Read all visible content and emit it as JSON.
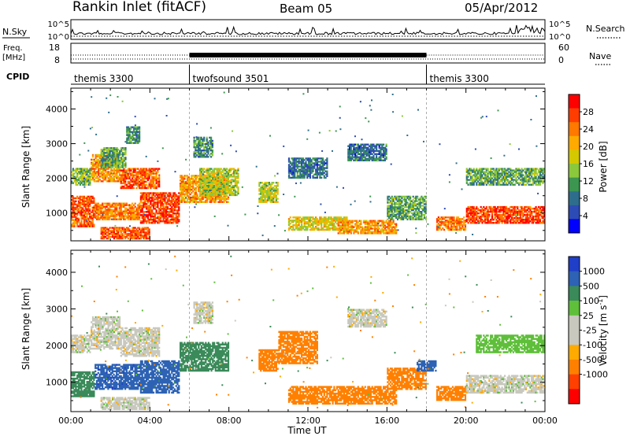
{
  "header": {
    "station": "Rankin Inlet (fitACF)",
    "beam": "Beam 05",
    "date": "05/Apr/2012"
  },
  "side_labels": {
    "nsky": "N.Sky",
    "freq_line1": "Freq.",
    "freq_line2": "[MHz]",
    "cpid": "CPID",
    "nsearch": "N.Search",
    "nave": "Nave"
  },
  "nsky_ticks": [
    "10^5",
    "10^0"
  ],
  "nsearch_ticks": [
    "10^5",
    "10^0"
  ],
  "freq_ticks": [
    "18",
    "8"
  ],
  "nave_ticks": [
    "60",
    "0"
  ],
  "cpid_segments": [
    {
      "label": "themis 3300",
      "start_h": 0,
      "end_h": 6
    },
    {
      "label": "twofsound 3501",
      "start_h": 6,
      "end_h": 18
    },
    {
      "label": "themis 3300",
      "start_h": 18,
      "end_h": 24
    }
  ],
  "chart_data": [
    {
      "type": "heatmap",
      "name": "power",
      "ylabel": "Slant Range [km]",
      "xlim": [
        0,
        24
      ],
      "ylim": [
        200,
        4600
      ],
      "yticks": [
        {
          "v": 1000,
          "label": "1000"
        },
        {
          "v": 2000,
          "label": "2000"
        },
        {
          "v": 3000,
          "label": "3000"
        },
        {
          "v": 4000,
          "label": "4000"
        }
      ],
      "colorbar": {
        "label": "Power [dB]",
        "ticks": [
          "28",
          "24",
          "20",
          "16",
          "12",
          "8",
          "4"
        ],
        "colors": [
          "#ff0000",
          "#ff3d00",
          "#ff7800",
          "#ffaa00",
          "#d4c800",
          "#8cc83c",
          "#3c9650",
          "#2e6e8c",
          "#2d4bb4",
          "#0000ff"
        ]
      },
      "regions": [
        {
          "h0": 0.0,
          "h1": 1.2,
          "r0": 600,
          "r1": 1500,
          "value": 26
        },
        {
          "h0": 0.0,
          "h1": 1.0,
          "r0": 1800,
          "r1": 2300,
          "value": 14
        },
        {
          "h0": 1.0,
          "h1": 2.5,
          "r0": 1900,
          "r1": 2700,
          "value": 22
        },
        {
          "h0": 1.5,
          "h1": 2.8,
          "r0": 2300,
          "r1": 2900,
          "value": 12
        },
        {
          "h0": 1.2,
          "h1": 3.5,
          "r0": 800,
          "r1": 1300,
          "value": 24
        },
        {
          "h0": 2.5,
          "h1": 4.5,
          "r0": 1700,
          "r1": 2300,
          "value": 26
        },
        {
          "h0": 3.5,
          "h1": 5.5,
          "r0": 700,
          "r1": 1600,
          "value": 27
        },
        {
          "h0": 5.5,
          "h1": 8.0,
          "r0": 1300,
          "r1": 2100,
          "value": 22
        },
        {
          "h0": 6.5,
          "h1": 8.5,
          "r0": 1500,
          "r1": 2300,
          "value": 16
        },
        {
          "h0": 1.5,
          "h1": 4.0,
          "r0": 250,
          "r1": 600,
          "value": 26
        },
        {
          "h0": 2.8,
          "h1": 3.5,
          "r0": 3000,
          "r1": 3500,
          "value": 10
        },
        {
          "h0": 6.2,
          "h1": 7.2,
          "r0": 2600,
          "r1": 3200,
          "value": 10
        },
        {
          "h0": 9.5,
          "h1": 10.5,
          "r0": 1300,
          "r1": 1900,
          "value": 16
        },
        {
          "h0": 11.0,
          "h1": 14.0,
          "r0": 500,
          "r1": 900,
          "value": 18
        },
        {
          "h0": 13.5,
          "h1": 16.5,
          "r0": 400,
          "r1": 800,
          "value": 22
        },
        {
          "h0": 11.0,
          "h1": 13.0,
          "r0": 2000,
          "r1": 2600,
          "value": 8
        },
        {
          "h0": 14.0,
          "h1": 16.0,
          "r0": 2500,
          "r1": 3000,
          "value": 8
        },
        {
          "h0": 16.0,
          "h1": 18.0,
          "r0": 800,
          "r1": 1500,
          "value": 12
        },
        {
          "h0": 18.5,
          "h1": 20.0,
          "r0": 500,
          "r1": 900,
          "value": 24
        },
        {
          "h0": 20.0,
          "h1": 24.0,
          "r0": 700,
          "r1": 1200,
          "value": 27
        },
        {
          "h0": 20.0,
          "h1": 24.0,
          "r0": 1800,
          "r1": 2300,
          "value": 12
        }
      ]
    },
    {
      "type": "heatmap",
      "name": "velocity",
      "ylabel": "Slant Range [km]",
      "xlabel": "Time UT",
      "xlim": [
        0,
        24
      ],
      "ylim": [
        200,
        4600
      ],
      "xticks": [
        "00:00",
        "04:00",
        "08:00",
        "12:00",
        "16:00",
        "20:00",
        "00:00"
      ],
      "yticks": [
        {
          "v": 1000,
          "label": "1000"
        },
        {
          "v": 2000,
          "label": "2000"
        },
        {
          "v": 3000,
          "label": "3000"
        },
        {
          "v": 4000,
          "label": "4000"
        }
      ],
      "colorbar": {
        "label": "Velocity [m s",
        "label_sup": "-1",
        "label_end": "]",
        "ticks": [
          "1000",
          "500",
          "100",
          "25",
          "-25",
          "-100",
          "-500",
          "-1000"
        ],
        "colors": [
          "#1f3fc8",
          "#2d62b4",
          "#3a8a5a",
          "#5fbf3a",
          "#c8c8be",
          "#c8c8be",
          "#ffaa00",
          "#ff8000",
          "#ff4000",
          "#ff0000"
        ]
      },
      "regions": [
        {
          "h0": 0.0,
          "h1": 1.2,
          "r0": 600,
          "r1": 1300,
          "value": 150
        },
        {
          "h0": 1.0,
          "h1": 2.5,
          "r0": 1900,
          "r1": 2800,
          "value": 0
        },
        {
          "h0": 0.0,
          "h1": 1.0,
          "r0": 1800,
          "r1": 2300,
          "value": 0
        },
        {
          "h0": 1.2,
          "h1": 3.5,
          "r0": 800,
          "r1": 1500,
          "value": 800
        },
        {
          "h0": 2.5,
          "h1": 4.5,
          "r0": 1700,
          "r1": 2500,
          "value": 0
        },
        {
          "h0": 3.5,
          "h1": 5.5,
          "r0": 700,
          "r1": 1600,
          "value": 700
        },
        {
          "h0": 5.5,
          "h1": 8.0,
          "r0": 1300,
          "r1": 2100,
          "value": 200
        },
        {
          "h0": 1.5,
          "h1": 4.0,
          "r0": 250,
          "r1": 600,
          "value": 0
        },
        {
          "h0": 6.2,
          "h1": 7.2,
          "r0": 2600,
          "r1": 3200,
          "value": 0
        },
        {
          "h0": 9.5,
          "h1": 10.5,
          "r0": 1300,
          "r1": 1900,
          "value": -150
        },
        {
          "h0": 10.5,
          "h1": 12.5,
          "r0": 1500,
          "r1": 2400,
          "value": -200
        },
        {
          "h0": 11.0,
          "h1": 16.5,
          "r0": 400,
          "r1": 900,
          "value": -200
        },
        {
          "h0": 14.0,
          "h1": 16.0,
          "r0": 2500,
          "r1": 3000,
          "value": 0
        },
        {
          "h0": 16.0,
          "h1": 18.0,
          "r0": 800,
          "r1": 1400,
          "value": -200
        },
        {
          "h0": 17.5,
          "h1": 18.5,
          "r0": 1300,
          "r1": 1600,
          "value": 700
        },
        {
          "h0": 18.5,
          "h1": 20.0,
          "r0": 500,
          "r1": 900,
          "value": -300
        },
        {
          "h0": 20.0,
          "h1": 24.0,
          "r0": 700,
          "r1": 1200,
          "value": 0
        },
        {
          "h0": 20.5,
          "h1": 24.0,
          "r0": 1800,
          "r1": 2300,
          "value": 60
        }
      ]
    }
  ]
}
